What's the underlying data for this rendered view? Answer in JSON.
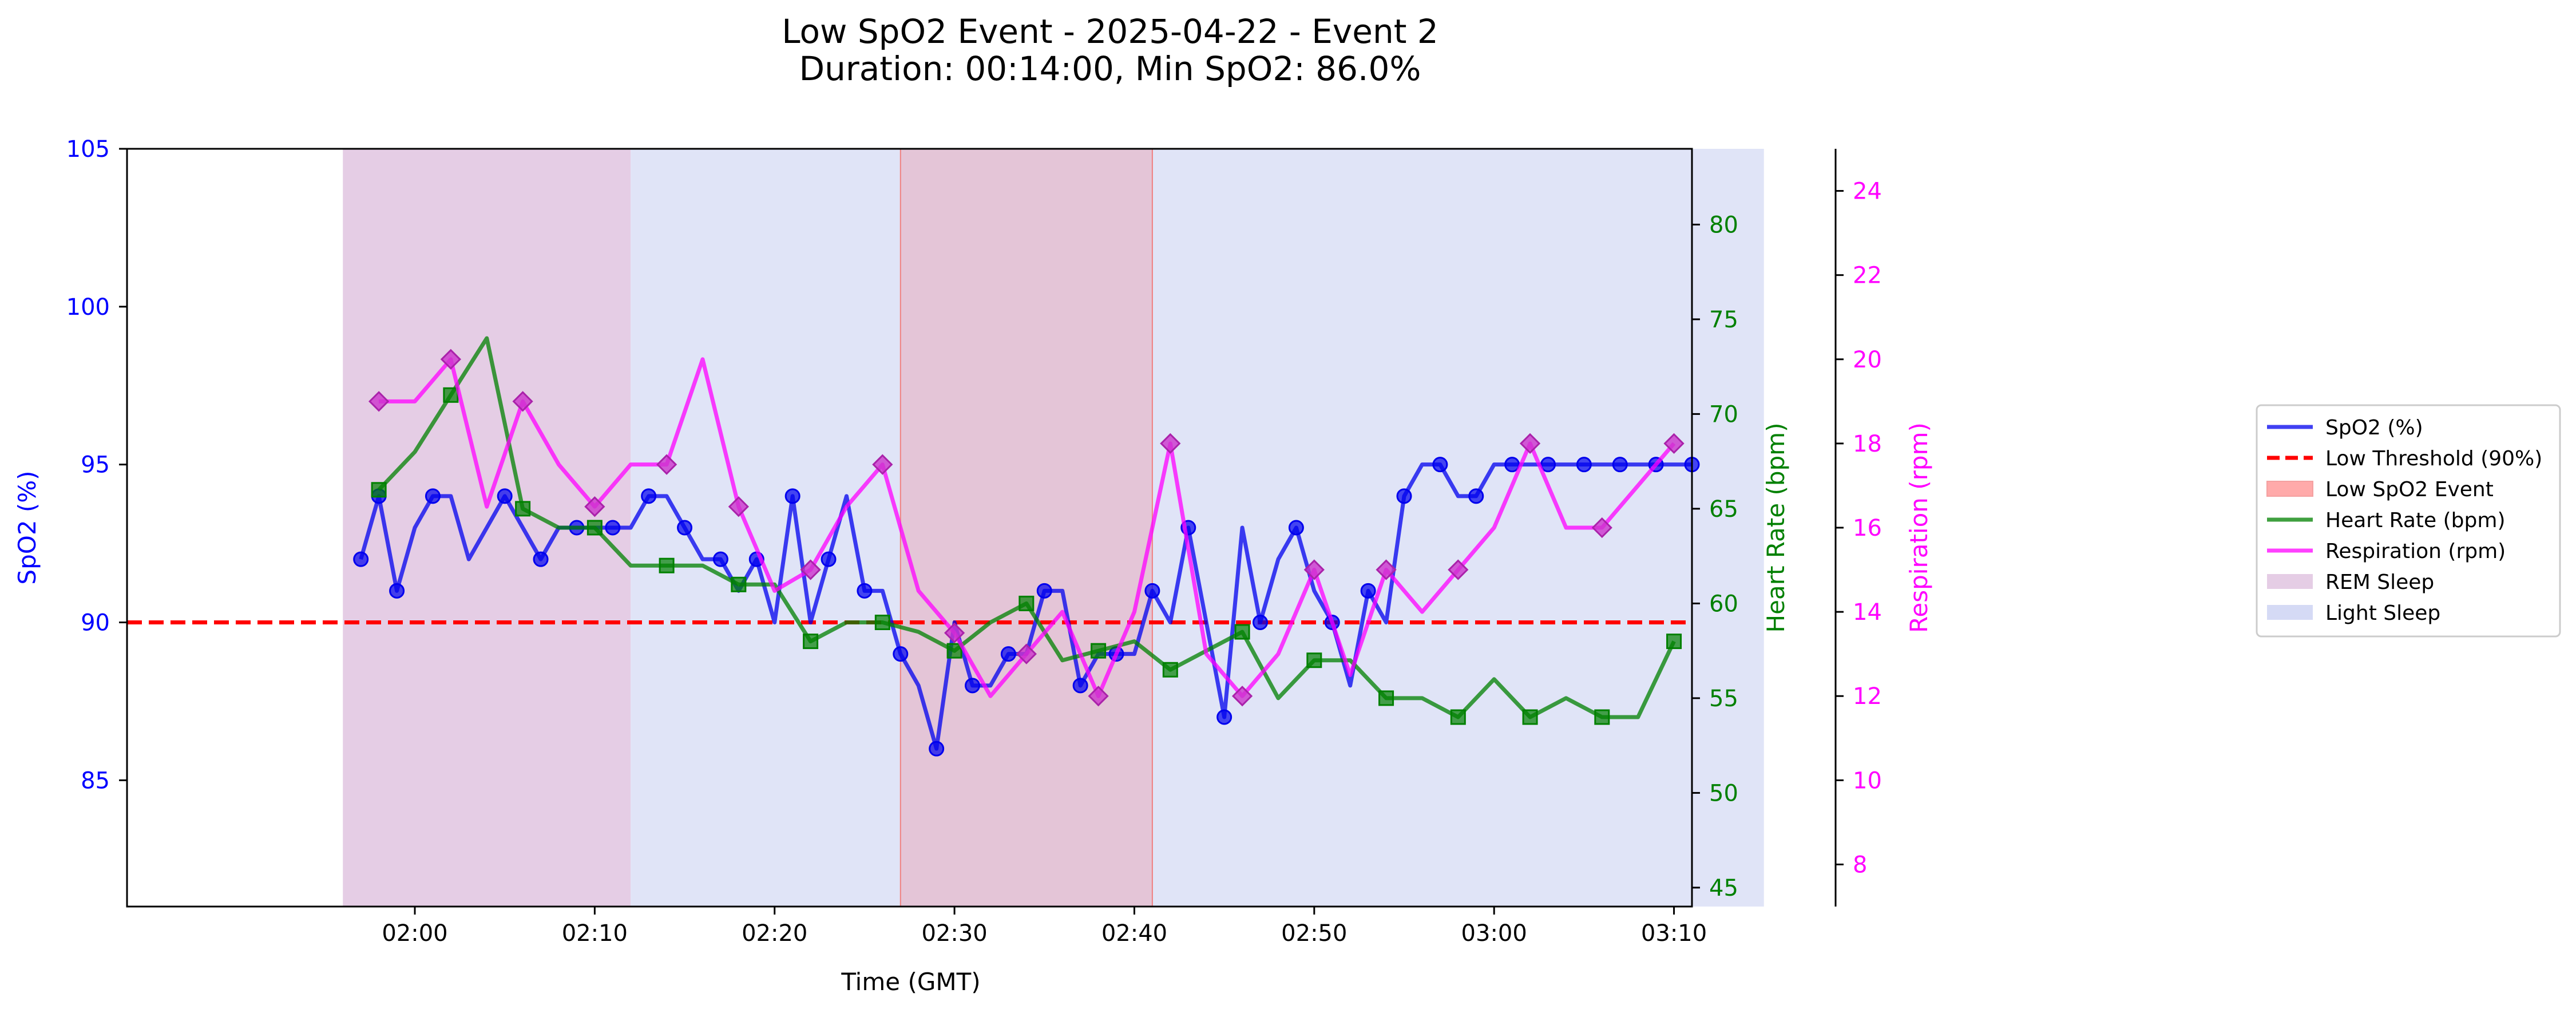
{
  "chart_data": {
    "type": "line",
    "title_line1": "Low SpO2 Event - 2025-04-22 - Event 2",
    "title_line2": "Duration: 00:14:00, Min SpO2: 86.0%",
    "xlabel": "Time (GMT)",
    "x_ticks": [
      "02:00",
      "02:10",
      "02:20",
      "02:30",
      "02:40",
      "02:50",
      "03:00",
      "03:10"
    ],
    "x_range_minutes": [
      -16,
      71
    ],
    "y_axes": {
      "spo2": {
        "label": "SpO2 (%)",
        "range": [
          81,
          105
        ],
        "ticks": [
          85,
          90,
          95,
          100,
          105
        ],
        "color": "#0000ff"
      },
      "heart_rate": {
        "label": "Heart Rate (bpm)",
        "range": [
          44,
          84
        ],
        "ticks": [
          45,
          50,
          55,
          60,
          65,
          70,
          75,
          80
        ],
        "color": "#008000"
      },
      "respiration": {
        "label": "Respiration (rpm)",
        "range": [
          7,
          25
        ],
        "ticks": [
          8,
          10,
          12,
          14,
          16,
          18,
          20,
          22,
          24
        ],
        "color": "#ff00ff"
      }
    },
    "low_threshold": {
      "name": "Low Threshold (90%)",
      "value": 90,
      "color": "#ff0000"
    },
    "low_event": {
      "name": "Low SpO2 Event",
      "start": "02:27",
      "end": "02:41",
      "color": "#ffaaaa"
    },
    "sleep_stages": [
      {
        "stage": "REM",
        "start": "01:56",
        "end": "02:12"
      },
      {
        "stage": "Light",
        "start": "02:12",
        "end": "03:15"
      }
    ],
    "series": [
      {
        "name": "SpO2 (%)",
        "axis": "spo2",
        "color": "#0000ee",
        "marker": "circle",
        "x": [
          "01:57",
          "01:58",
          "01:59",
          "02:00",
          "02:01",
          "02:02",
          "02:03",
          "02:04",
          "02:05",
          "02:06",
          "02:07",
          "02:08",
          "02:09",
          "02:10",
          "02:11",
          "02:12",
          "02:13",
          "02:14",
          "02:15",
          "02:16",
          "02:17",
          "02:18",
          "02:19",
          "02:20",
          "02:21",
          "02:22",
          "02:23",
          "02:24",
          "02:25",
          "02:26",
          "02:27",
          "02:28",
          "02:29",
          "02:30",
          "02:31",
          "02:32",
          "02:33",
          "02:34",
          "02:35",
          "02:36",
          "02:37",
          "02:38",
          "02:39",
          "02:40",
          "02:41",
          "02:42",
          "02:43",
          "02:44",
          "02:45",
          "02:46",
          "02:47",
          "02:48",
          "02:49",
          "02:50",
          "02:51",
          "02:52",
          "02:53",
          "02:54",
          "02:55",
          "02:56",
          "02:57",
          "02:58",
          "02:59",
          "03:00",
          "03:01",
          "03:02",
          "03:03",
          "03:04",
          "03:05",
          "03:06",
          "03:07",
          "03:08",
          "03:09",
          "03:10",
          "03:11"
        ],
        "values": [
          92,
          94,
          91,
          93,
          94,
          94,
          92,
          93,
          94,
          93,
          92,
          93,
          93,
          93,
          93,
          93,
          94,
          94,
          93,
          92,
          92,
          91,
          92,
          90,
          94,
          90,
          92,
          94,
          91,
          91,
          89,
          88,
          86,
          90,
          88,
          88,
          89,
          89,
          91,
          91,
          88,
          89,
          89,
          89,
          91,
          90,
          93,
          90,
          87,
          93,
          90,
          92,
          93,
          91,
          90,
          88,
          91,
          90,
          94,
          95,
          95,
          94,
          94,
          95,
          95,
          95,
          95,
          95,
          95,
          95,
          95,
          95,
          95,
          95,
          95
        ],
        "marker_values": [
          92,
          94,
          91,
          null,
          94,
          null,
          null,
          null,
          94,
          null,
          92,
          null,
          93,
          null,
          93,
          null,
          94,
          null,
          93,
          null,
          92,
          null,
          92,
          null,
          94,
          null,
          92,
          null,
          91,
          null,
          89,
          null,
          86,
          null,
          88,
          null,
          89,
          null,
          91,
          null,
          88,
          null,
          89,
          null,
          91,
          null,
          93,
          null,
          87,
          null,
          90,
          null,
          93,
          null,
          90,
          null,
          91,
          null,
          94,
          null,
          95,
          null,
          94,
          null,
          95,
          null,
          95,
          null,
          95,
          null,
          95,
          null,
          95,
          null,
          95
        ]
      },
      {
        "name": "Heart Rate (bpm)",
        "axis": "heart_rate",
        "color": "#008000",
        "marker": "square",
        "x": [
          "01:58",
          "02:00",
          "02:02",
          "02:04",
          "02:06",
          "02:08",
          "02:10",
          "02:12",
          "02:14",
          "02:16",
          "02:18",
          "02:20",
          "02:22",
          "02:24",
          "02:26",
          "02:28",
          "02:30",
          "02:32",
          "02:34",
          "02:36",
          "02:38",
          "02:40",
          "02:42",
          "02:44",
          "02:46",
          "02:48",
          "02:50",
          "02:52",
          "02:54",
          "02:56",
          "02:58",
          "03:00",
          "03:02",
          "03:04",
          "03:06",
          "03:08",
          "03:10"
        ],
        "values": [
          66,
          68,
          71,
          74,
          65,
          64,
          64,
          62,
          62,
          62,
          61,
          61,
          58,
          59,
          59,
          58.5,
          57.5,
          59,
          60,
          57,
          57.5,
          58,
          56.5,
          57.5,
          58.5,
          55,
          57,
          57,
          55,
          55,
          54,
          56,
          54,
          55,
          54,
          54,
          58
        ],
        "marker_x": [
          "01:58",
          "02:02",
          "02:06",
          "02:10",
          "02:14",
          "02:18",
          "02:22",
          "02:26",
          "02:30",
          "02:34",
          "02:38",
          "02:42",
          "02:46",
          "02:50",
          "02:54",
          "02:58",
          "03:02",
          "03:06",
          "03:10"
        ],
        "marker_values": [
          66,
          71,
          65,
          64,
          62,
          61,
          58,
          59,
          57.5,
          60,
          57.5,
          56.5,
          58.5,
          57,
          55,
          54,
          54,
          54,
          58
        ]
      },
      {
        "name": "Respiration (rpm)",
        "axis": "respiration",
        "color": "#ff00ff",
        "marker": "diamond",
        "x": [
          "01:58",
          "02:00",
          "02:02",
          "02:04",
          "02:06",
          "02:08",
          "02:10",
          "02:12",
          "02:14",
          "02:16",
          "02:18",
          "02:20",
          "02:22",
          "02:24",
          "02:26",
          "02:28",
          "02:30",
          "02:32",
          "02:34",
          "02:36",
          "02:38",
          "02:40",
          "02:42",
          "02:44",
          "02:46",
          "02:48",
          "02:50",
          "02:52",
          "02:54",
          "02:56",
          "02:58",
          "03:00",
          "03:02",
          "03:04",
          "03:06",
          "03:08",
          "03:10"
        ],
        "values": [
          19,
          19,
          20,
          16.5,
          19,
          17.5,
          16.5,
          17.5,
          17.5,
          20,
          16.5,
          14.5,
          15,
          16.5,
          17.5,
          14.5,
          13.5,
          12,
          13,
          14,
          12,
          14,
          18,
          13,
          12,
          13,
          15,
          12.5,
          15,
          14,
          15,
          16,
          18,
          16,
          16,
          17,
          18
        ],
        "marker_x": [
          "01:58",
          "02:02",
          "02:06",
          "02:10",
          "02:14",
          "02:18",
          "02:22",
          "02:26",
          "02:30",
          "02:34",
          "02:38",
          "02:42",
          "02:46",
          "02:50",
          "02:54",
          "02:58",
          "03:02",
          "03:06",
          "03:10"
        ],
        "marker_values": [
          19,
          20,
          19,
          16.5,
          17.5,
          16.5,
          15,
          17.5,
          13.5,
          13,
          12,
          18,
          12,
          15,
          15,
          15,
          18,
          16,
          18
        ]
      }
    ],
    "legend": {
      "placement": "right",
      "entries": [
        {
          "label": "SpO2 (%)",
          "kind": "line",
          "color": "#0000ee"
        },
        {
          "label": "Low Threshold (90%)",
          "kind": "dashed",
          "color": "#ff0000"
        },
        {
          "label": "Low SpO2 Event",
          "kind": "patch",
          "color": "#ffaaaa"
        },
        {
          "label": "Heart Rate (bpm)",
          "kind": "line",
          "color": "#008000"
        },
        {
          "label": "Respiration (rpm)",
          "kind": "line",
          "color": "#ff00ff"
        },
        {
          "label": "REM Sleep",
          "kind": "patch",
          "color": "#e5cde5"
        },
        {
          "label": "Light Sleep",
          "kind": "patch",
          "color": "#d5daf5"
        }
      ]
    }
  }
}
